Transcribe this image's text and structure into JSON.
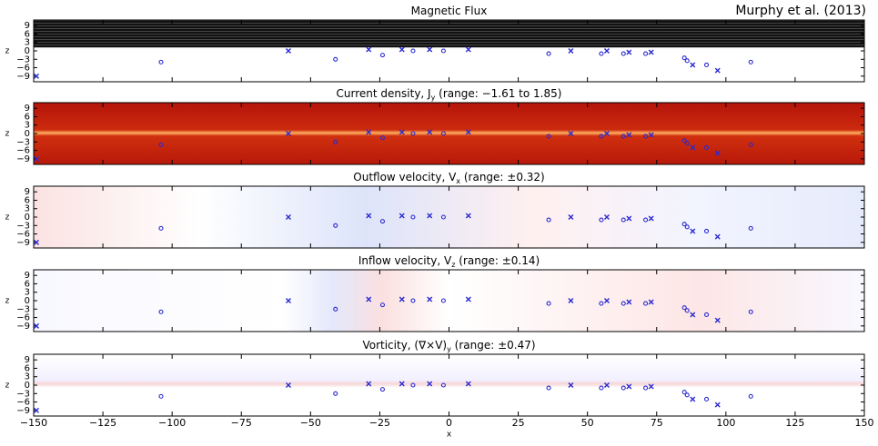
{
  "annotation": "Murphy et al. (2013)",
  "chart_data": [
    {
      "type": "scatter",
      "title": [
        "Magnetic Flux"
      ],
      "ylabel": "z",
      "xlim": [
        -150,
        150
      ],
      "ylim": [
        -11,
        11
      ],
      "xticklabels": false,
      "xticks": [
        -150,
        -125,
        -100,
        -75,
        -50,
        -25,
        0,
        25,
        50,
        75,
        100,
        125,
        150
      ],
      "yticks": [
        9,
        6,
        3,
        0,
        {
          "value": -3,
          "label": "−3"
        },
        {
          "value": -6,
          "label": "−6"
        },
        {
          "value": -9,
          "label": "−9"
        }
      ],
      "series": [
        {
          "marker": "x",
          "color": "#2a2ad0",
          "x": [
            -149,
            -58,
            -29,
            -17,
            -7,
            7,
            44,
            57,
            65,
            73,
            88,
            97
          ],
          "values": [
            -9,
            0,
            0.5,
            0.5,
            0.5,
            0.5,
            0,
            0,
            -0.5,
            -0.5,
            -5,
            -7
          ]
        },
        {
          "marker": "o",
          "color": "#2a2ad0",
          "x": [
            -104,
            -41,
            -24,
            -13,
            -2,
            36,
            55,
            63,
            71,
            85,
            86,
            93,
            109
          ],
          "values": [
            -4,
            -3,
            -1.5,
            0,
            0,
            -1,
            -1,
            -1,
            -1,
            -2.5,
            -3.5,
            -5,
            -4
          ]
        }
      ]
    },
    {
      "type": "scatter",
      "title": [
        "Current density, J",
        "y",
        " (range: −1.61 to 1.85)"
      ],
      "ylabel": "z",
      "xlim": [
        -150,
        150
      ],
      "ylim": [
        -11,
        11
      ],
      "xticklabels": false,
      "xticks": [
        -150,
        -125,
        -100,
        -75,
        -50,
        -25,
        0,
        25,
        50,
        75,
        100,
        125,
        150
      ],
      "yticks": [
        9,
        6,
        3,
        0,
        {
          "value": -3,
          "label": "−3"
        },
        {
          "value": -6,
          "label": "−6"
        },
        {
          "value": -9,
          "label": "−9"
        }
      ],
      "series": [
        {
          "marker": "x",
          "color": "#2a2ad0",
          "x": [
            -149,
            -58,
            -29,
            -17,
            -7,
            7,
            44,
            57,
            65,
            73,
            88,
            97
          ],
          "values": [
            -9,
            0,
            0.5,
            0.5,
            0.5,
            0.5,
            0,
            0,
            -0.5,
            -0.5,
            -5,
            -7
          ]
        },
        {
          "marker": "o",
          "color": "#2a2ad0",
          "x": [
            -104,
            -41,
            -24,
            -13,
            -2,
            36,
            55,
            63,
            71,
            85,
            86,
            93,
            109
          ],
          "values": [
            -4,
            -3,
            -1.5,
            0,
            0,
            -1,
            -1,
            -1,
            -1,
            -2.5,
            -3.5,
            -5,
            -4
          ]
        }
      ]
    },
    {
      "type": "scatter",
      "title": [
        "Outflow velocity, V",
        "x",
        " (range: ±0.32)"
      ],
      "ylabel": "z",
      "xlim": [
        -150,
        150
      ],
      "ylim": [
        -11,
        11
      ],
      "xticklabels": false,
      "xticks": [
        -150,
        -125,
        -100,
        -75,
        -50,
        -25,
        0,
        25,
        50,
        75,
        100,
        125,
        150
      ],
      "yticks": [
        9,
        6,
        3,
        0,
        {
          "value": -3,
          "label": "−3"
        },
        {
          "value": -6,
          "label": "−6"
        },
        {
          "value": -9,
          "label": "−9"
        }
      ],
      "series": [
        {
          "marker": "x",
          "color": "#2a2ad0",
          "x": [
            -149,
            -58,
            -29,
            -17,
            -7,
            7,
            44,
            57,
            65,
            73,
            88,
            97
          ],
          "values": [
            -9,
            0,
            0.5,
            0.5,
            0.5,
            0.5,
            0,
            0,
            -0.5,
            -0.5,
            -5,
            -7
          ]
        },
        {
          "marker": "o",
          "color": "#2a2ad0",
          "x": [
            -104,
            -41,
            -24,
            -13,
            -2,
            36,
            55,
            63,
            71,
            85,
            86,
            93,
            109
          ],
          "values": [
            -4,
            -3,
            -1.5,
            0,
            0,
            -1,
            -1,
            -1,
            -1,
            -2.5,
            -3.5,
            -5,
            -4
          ]
        }
      ]
    },
    {
      "type": "scatter",
      "title": [
        "Inflow velocity, V",
        "z",
        " (range: ±0.14)"
      ],
      "ylabel": "z",
      "xlim": [
        -150,
        150
      ],
      "ylim": [
        -11,
        11
      ],
      "xticklabels": false,
      "xticks": [
        -150,
        -125,
        -100,
        -75,
        -50,
        -25,
        0,
        25,
        50,
        75,
        100,
        125,
        150
      ],
      "yticks": [
        9,
        6,
        3,
        0,
        {
          "value": -3,
          "label": "−3"
        },
        {
          "value": -6,
          "label": "−6"
        },
        {
          "value": -9,
          "label": "−9"
        }
      ],
      "series": [
        {
          "marker": "x",
          "color": "#2a2ad0",
          "x": [
            -149,
            -58,
            -29,
            -17,
            -7,
            7,
            44,
            57,
            65,
            73,
            88,
            97
          ],
          "values": [
            -9,
            0,
            0.5,
            0.5,
            0.5,
            0.5,
            0,
            0,
            -0.5,
            -0.5,
            -5,
            -7
          ]
        },
        {
          "marker": "o",
          "color": "#2a2ad0",
          "x": [
            -104,
            -41,
            -24,
            -13,
            -2,
            36,
            55,
            63,
            71,
            85,
            86,
            93,
            109
          ],
          "values": [
            -4,
            -3,
            -1.5,
            0,
            0,
            -1,
            -1,
            -1,
            -1,
            -2.5,
            -3.5,
            -5,
            -4
          ]
        }
      ]
    },
    {
      "type": "scatter",
      "title": [
        "Vorticity, (∇×V)",
        "y",
        " (range: ±0.47)"
      ],
      "ylabel": "z",
      "xlabel": "x",
      "xlim": [
        -150,
        150
      ],
      "ylim": [
        -11,
        11
      ],
      "xticklabels": true,
      "xticks": [
        {
          "value": -150,
          "label": "−150"
        },
        {
          "value": -125,
          "label": "−125"
        },
        {
          "value": -100,
          "label": "−100"
        },
        {
          "value": -75,
          "label": "−75"
        },
        {
          "value": -50,
          "label": "−50"
        },
        {
          "value": -25,
          "label": "−25"
        },
        0,
        25,
        50,
        75,
        100,
        125,
        150
      ],
      "yticks": [
        9,
        6,
        3,
        0,
        {
          "value": -3,
          "label": "−3"
        },
        {
          "value": -6,
          "label": "−6"
        },
        {
          "value": -9,
          "label": "−9"
        }
      ],
      "series": [
        {
          "marker": "x",
          "color": "#2a2ad0",
          "x": [
            -149,
            -58,
            -29,
            -17,
            -7,
            7,
            44,
            57,
            65,
            73,
            88,
            97
          ],
          "values": [
            -9,
            0,
            0.5,
            0.5,
            0.5,
            0.5,
            0,
            0,
            -0.5,
            -0.5,
            -5,
            -7
          ]
        },
        {
          "marker": "o",
          "color": "#2a2ad0",
          "x": [
            -104,
            -41,
            -24,
            -13,
            -2,
            36,
            55,
            63,
            71,
            85,
            86,
            93,
            109
          ],
          "values": [
            -4,
            -3,
            -1.5,
            0,
            0,
            -1,
            -1,
            -1,
            -1,
            -2.5,
            -3.5,
            -5,
            -4
          ]
        }
      ]
    }
  ]
}
